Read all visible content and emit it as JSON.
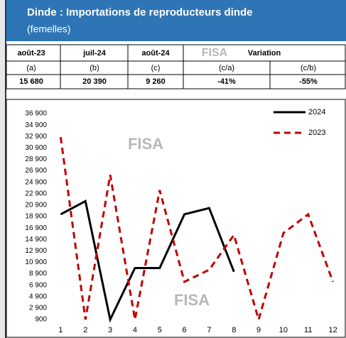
{
  "header": {
    "title": "Dinde : Importations de reproducteurs dinde",
    "subtitle": "(femelles)"
  },
  "table": {
    "headers": [
      "août-23",
      "juil-24",
      "août-24",
      "Variation"
    ],
    "subheaders": [
      "(a)",
      "(b)",
      "(c)",
      "(c/a)",
      "(c/b)"
    ],
    "values": [
      "15 680",
      "20 390",
      "9 260",
      "-41%",
      "-55%"
    ]
  },
  "watermark": "FISA",
  "chart_data": {
    "type": "line",
    "categories": [
      1,
      2,
      3,
      4,
      5,
      6,
      7,
      8,
      9,
      10,
      11,
      12
    ],
    "series": [
      {
        "name": "2024",
        "color": "#000000",
        "values": [
          19300,
          21600,
          900,
          9900,
          9900,
          19300,
          20390,
          9260,
          null,
          null,
          null,
          null
        ]
      },
      {
        "name": "2023",
        "color": "#c00000",
        "values": [
          32800,
          900,
          26200,
          900,
          23500,
          7500,
          9600,
          15680,
          900,
          16000,
          19300,
          7500
        ]
      }
    ],
    "ylim": [
      900,
      36900
    ],
    "yticks": [
      {
        "value": 900,
        "label": "900"
      },
      {
        "value": 2900,
        "label": "2 900"
      },
      {
        "value": 4900,
        "label": "4 900"
      },
      {
        "value": 6900,
        "label": "6 900"
      },
      {
        "value": 8900,
        "label": "8 900"
      },
      {
        "value": 10900,
        "label": "10 900"
      },
      {
        "value": 12900,
        "label": "12 900"
      },
      {
        "value": 14900,
        "label": "14 900"
      },
      {
        "value": 16900,
        "label": "16 900"
      },
      {
        "value": 18900,
        "label": "18 900"
      },
      {
        "value": 20900,
        "label": "20 900"
      },
      {
        "value": 22900,
        "label": "22 900"
      },
      {
        "value": 24900,
        "label": "24 900"
      },
      {
        "value": 26900,
        "label": "26 900"
      },
      {
        "value": 28900,
        "label": "28 900"
      },
      {
        "value": 30900,
        "label": "30 900"
      },
      {
        "value": 32900,
        "label": "32 900"
      },
      {
        "value": 34900,
        "label": "34 900"
      },
      {
        "value": 36900,
        "label": "36 900"
      }
    ],
    "legend": "upper right"
  }
}
